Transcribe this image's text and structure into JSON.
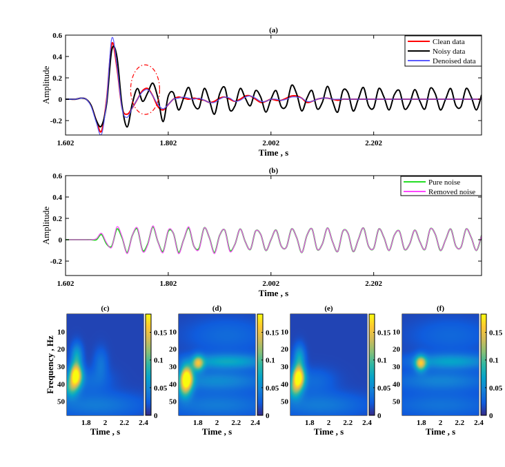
{
  "chart_data": [
    {
      "id": "a",
      "type": "line",
      "title": "(a)",
      "xlabel": "Time , s",
      "ylabel": "Amplitude",
      "xlim": [
        1.6,
        2.41
      ],
      "ylim": [
        -0.335,
        0.6
      ],
      "xticks": [
        1.6,
        1.8,
        2.0,
        2.2
      ],
      "xtick_labels": [
        "1.602",
        "1.802",
        "2.002",
        "2.202"
      ],
      "yticks": [
        0.6,
        0.4,
        0.2,
        0,
        -0.2
      ],
      "ytick_labels": [
        "0.6",
        "0.4",
        "0.2",
        "0",
        "-0.2"
      ],
      "legend": "top-right",
      "annotation": {
        "type": "dash-dot ellipse",
        "center_time": 1.755,
        "center_amplitude": 0.09,
        "color": "#ff0000"
      },
      "x_start": 1.6,
      "x_step": 0.01,
      "series": [
        {
          "name": "Clean data",
          "color": "#ff0000",
          "values": [
            0,
            0,
            0,
            0.01,
            0,
            -0.06,
            -0.2,
            -0.3,
            0,
            0.52,
            0.3,
            -0.08,
            -0.14,
            -0.08,
            0,
            0.08,
            0.1,
            0.03,
            -0.07,
            -0.1,
            -0.05,
            0,
            0.02,
            0.01,
            0,
            0.01,
            0,
            -0.01,
            -0.03,
            -0.02,
            0.01,
            0.02,
            0,
            -0.02,
            0,
            0.03,
            0.03,
            0,
            -0.03,
            -0.02,
            0,
            -0.01,
            -0.01,
            0.01,
            0.03,
            0.03,
            0.01,
            -0.03,
            -0.02,
            0,
            0.01,
            0.01,
            0,
            -0.01,
            0,
            0,
            0,
            0,
            0,
            0,
            0,
            0,
            0,
            0,
            0,
            0,
            0,
            0,
            0,
            0,
            0,
            0,
            0,
            0,
            0,
            0,
            0,
            0,
            0,
            0,
            0,
            0
          ]
        },
        {
          "name": "Noisy data",
          "color": "#000000",
          "values": [
            0,
            0,
            0,
            0.01,
            0,
            -0.06,
            -0.2,
            -0.25,
            -0.04,
            0.46,
            0.4,
            -0.06,
            -0.26,
            -0.04,
            0.1,
            -0.02,
            0.06,
            0.15,
            0.01,
            -0.21,
            0.03,
            0.06,
            -0.1,
            0.01,
            0.11,
            -0.05,
            -0.08,
            0.1,
            -0.01,
            -0.14,
            0.05,
            0.11,
            -0.1,
            -0.06,
            0.1,
            0.01,
            -0.06,
            0.08,
            0.02,
            -0.12,
            0,
            0.08,
            -0.07,
            -0.06,
            0.13,
            0.05,
            -0.11,
            0.01,
            0.08,
            -0.09,
            -0.03,
            0.12,
            -0.02,
            -0.12,
            0.08,
            0.06,
            -0.11,
            0,
            0.11,
            -0.06,
            -0.08,
            0.1,
            0.02,
            -0.1,
            0.04,
            0.08,
            -0.09,
            -0.04,
            0.09,
            -0.02,
            -0.09,
            0.1,
            0.05,
            -0.1,
            0,
            0.1,
            -0.06,
            -0.07,
            0.1,
            0.02,
            -0.1,
            0.04
          ]
        },
        {
          "name": "Denoised data",
          "color": "#5a5aff",
          "values": [
            0,
            0,
            0,
            0.01,
            0,
            -0.07,
            -0.22,
            -0.33,
            -0.01,
            0.57,
            0.32,
            -0.09,
            -0.17,
            -0.08,
            0,
            0.07,
            0.09,
            0.03,
            -0.05,
            -0.09,
            -0.05,
            0,
            0.01,
            0.02,
            0.01,
            0,
            0.01,
            -0.01,
            -0.03,
            -0.03,
            0,
            0.02,
            0.01,
            -0.02,
            -0.01,
            0.02,
            0.03,
            0.01,
            -0.02,
            -0.02,
            0,
            0,
            -0.01,
            0,
            0.02,
            0.02,
            0.01,
            -0.02,
            -0.02,
            0,
            0.01,
            0.01,
            0,
            0,
            0,
            0,
            0,
            0,
            0,
            0,
            0,
            0,
            0,
            0,
            0,
            0,
            0,
            0,
            0,
            0,
            0,
            0,
            0,
            0,
            0,
            0,
            0,
            0,
            0,
            0,
            0,
            0
          ]
        }
      ]
    },
    {
      "id": "b",
      "type": "line",
      "title": "(b)",
      "xlabel": "Time , s",
      "ylabel": "Amplitude",
      "xlim": [
        1.6,
        2.41
      ],
      "ylim": [
        -0.335,
        0.6
      ],
      "xticks": [
        1.6,
        1.8,
        2.0,
        2.2
      ],
      "xtick_labels": [
        "1.602",
        "1.802",
        "2.002",
        "2.202"
      ],
      "yticks": [
        0.6,
        0.4,
        0.2,
        0,
        -0.2
      ],
      "ytick_labels": [
        "0.6",
        "0.4",
        "0.2",
        "0",
        "-0.2"
      ],
      "legend": "top-right",
      "x_start": 1.6,
      "x_step": 0.01,
      "series": [
        {
          "name": "Pure noise",
          "color": "#22dd22",
          "values": [
            0,
            0,
            0,
            0,
            0,
            0,
            0,
            0.05,
            -0.04,
            -0.06,
            0.1,
            0.02,
            -0.12,
            0.04,
            0.1,
            -0.1,
            -0.04,
            0.12,
            -0.02,
            -0.11,
            0.08,
            0.06,
            -0.12,
            0,
            0.11,
            -0.06,
            -0.08,
            0.11,
            0.02,
            -0.12,
            0.04,
            0.09,
            -0.1,
            -0.04,
            0.1,
            -0.02,
            -0.09,
            0.08,
            0.05,
            -0.1,
            0,
            0.09,
            -0.06,
            -0.07,
            0.1,
            0.02,
            -0.12,
            0.04,
            0.1,
            -0.09,
            -0.04,
            0.11,
            -0.02,
            -0.11,
            0.08,
            0.06,
            -0.11,
            0,
            0.11,
            -0.06,
            -0.08,
            0.1,
            0.02,
            -0.1,
            0.04,
            0.08,
            -0.09,
            -0.04,
            0.09,
            -0.02,
            -0.09,
            0.1,
            0.05,
            -0.1,
            0,
            0.1,
            -0.06,
            -0.07,
            0.1,
            0.02,
            -0.1,
            0.04
          ]
        },
        {
          "name": "Removed noise",
          "color": "#ff44ff",
          "values": [
            0,
            0,
            0,
            0,
            0,
            0,
            0.01,
            0.06,
            -0.03,
            -0.07,
            0.12,
            0.03,
            -0.13,
            0.04,
            0.11,
            -0.11,
            -0.05,
            0.13,
            -0.02,
            -0.12,
            0.09,
            0.06,
            -0.13,
            0,
            0.12,
            -0.06,
            -0.09,
            0.11,
            0.02,
            -0.13,
            0.04,
            0.09,
            -0.11,
            -0.04,
            0.1,
            -0.02,
            -0.09,
            0.08,
            0.05,
            -0.1,
            0,
            0.09,
            -0.06,
            -0.07,
            0.1,
            0.02,
            -0.12,
            0.04,
            0.1,
            -0.09,
            -0.04,
            0.11,
            -0.02,
            -0.11,
            0.08,
            0.06,
            -0.11,
            0,
            0.11,
            -0.06,
            -0.08,
            0.1,
            0.02,
            -0.1,
            0.04,
            0.08,
            -0.09,
            -0.04,
            0.09,
            -0.02,
            -0.09,
            0.1,
            0.05,
            -0.1,
            0,
            0.1,
            -0.06,
            -0.07,
            0.1,
            0.02,
            -0.1,
            0.04
          ]
        }
      ]
    },
    {
      "id": "c",
      "type": "heatmap",
      "title": "(c)",
      "xlabel": "Time , s",
      "ylabel": "Frequency , Hz",
      "xlim": [
        1.6,
        2.4
      ],
      "ylim": [
        0,
        58
      ],
      "xticks": [
        1.8,
        2,
        2.2,
        2.4
      ],
      "xtick_labels": [
        "1.8",
        "2",
        "2.2",
        "2.4"
      ],
      "yticks": [
        10,
        20,
        30,
        40,
        50
      ],
      "ytick_labels": [
        "10",
        "20",
        "30",
        "40",
        "50"
      ],
      "colorbar": {
        "lim": [
          0,
          0.183
        ],
        "ticks": [
          0,
          0.05,
          0.1,
          0.15
        ],
        "tick_labels": [
          "0",
          "0.05",
          "0.1",
          "0.15"
        ],
        "colormap": "parula"
      },
      "energy_peaks": [
        {
          "time": 1.69,
          "freq": 35,
          "value": 0.18,
          "dt": 0.045,
          "df": 4.5
        },
        {
          "time": 1.7,
          "freq": 24,
          "value": 0.06,
          "dt": 0.04,
          "df": 5
        },
        {
          "time": 1.64,
          "freq": 42,
          "value": 0.07,
          "dt": 0.05,
          "df": 4
        },
        {
          "time": 1.9,
          "freq": 52,
          "value": 0.03,
          "dt": 0.35,
          "df": 5
        },
        {
          "time": 1.95,
          "freq": 28,
          "value": 0.025,
          "dt": 0.05,
          "df": 6
        },
        {
          "time": 1.85,
          "freq": 38,
          "value": 0.02,
          "dt": 0.15,
          "df": 5
        }
      ]
    },
    {
      "id": "d",
      "type": "heatmap",
      "title": "(d)",
      "xlabel": "Time , s",
      "ylabel": "",
      "xlim": [
        1.6,
        2.4
      ],
      "ylim": [
        0,
        58
      ],
      "xticks": [
        1.8,
        2,
        2.2,
        2.4
      ],
      "xtick_labels": [
        "1.8",
        "2",
        "2.2",
        "2.4"
      ],
      "yticks": [
        10,
        20,
        30,
        40,
        50
      ],
      "ytick_labels": [
        "10",
        "20",
        "30",
        "40",
        "50"
      ],
      "colorbar": {
        "lim": [
          0,
          0.183
        ],
        "ticks": [
          0,
          0.05,
          0.1,
          0.15
        ],
        "tick_labels": [
          "0",
          "0.05",
          "0.1",
          "0.15"
        ],
        "colormap": "parula"
      },
      "energy_peaks": [
        {
          "time": 1.68,
          "freq": 36,
          "value": 0.18,
          "dt": 0.045,
          "df": 4.5
        },
        {
          "time": 1.66,
          "freq": 43,
          "value": 0.07,
          "dt": 0.05,
          "df": 4
        },
        {
          "time": 1.8,
          "freq": 28,
          "value": 0.11,
          "dt": 0.04,
          "df": 3
        },
        {
          "time": 2.1,
          "freq": 27,
          "value": 0.06,
          "dt": 0.3,
          "df": 3
        },
        {
          "time": 2.0,
          "freq": 38,
          "value": 0.04,
          "dt": 0.35,
          "df": 4
        },
        {
          "time": 2.0,
          "freq": 52,
          "value": 0.03,
          "dt": 0.4,
          "df": 5
        },
        {
          "time": 2.1,
          "freq": 12,
          "value": 0.02,
          "dt": 0.3,
          "df": 7
        }
      ]
    },
    {
      "id": "e",
      "type": "heatmap",
      "title": "(e)",
      "xlabel": "Time , s",
      "ylabel": "",
      "xlim": [
        1.6,
        2.4
      ],
      "ylim": [
        0,
        58
      ],
      "xticks": [
        1.8,
        2,
        2.2,
        2.4
      ],
      "xtick_labels": [
        "1.8",
        "2",
        "2.2",
        "2.4"
      ],
      "yticks": [
        10,
        20,
        30,
        40,
        50
      ],
      "ytick_labels": [
        "10",
        "20",
        "30",
        "40",
        "50"
      ],
      "colorbar": {
        "lim": [
          0,
          0.183
        ],
        "ticks": [
          0,
          0.05,
          0.1,
          0.15
        ],
        "tick_labels": [
          "0",
          "0.05",
          "0.1",
          "0.15"
        ],
        "colormap": "parula"
      },
      "energy_peaks": [
        {
          "time": 1.68,
          "freq": 36,
          "value": 0.18,
          "dt": 0.045,
          "df": 4.5
        },
        {
          "time": 1.69,
          "freq": 25,
          "value": 0.06,
          "dt": 0.04,
          "df": 5
        },
        {
          "time": 1.64,
          "freq": 43,
          "value": 0.07,
          "dt": 0.05,
          "df": 4
        },
        {
          "time": 1.9,
          "freq": 52,
          "value": 0.03,
          "dt": 0.35,
          "df": 5
        },
        {
          "time": 1.85,
          "freq": 38,
          "value": 0.02,
          "dt": 0.15,
          "df": 5
        }
      ]
    },
    {
      "id": "f",
      "type": "heatmap",
      "title": "(f)",
      "xlabel": "Time , s",
      "ylabel": "",
      "xlim": [
        1.6,
        2.4
      ],
      "ylim": [
        0,
        58
      ],
      "xticks": [
        1.8,
        2,
        2.2,
        2.4
      ],
      "xtick_labels": [
        "1.8",
        "2",
        "2.2",
        "2.4"
      ],
      "yticks": [
        10,
        20,
        30,
        40,
        50
      ],
      "ytick_labels": [
        "10",
        "20",
        "30",
        "40",
        "50"
      ],
      "colorbar": {
        "lim": [
          0,
          0.183
        ],
        "ticks": [
          0,
          0.05,
          0.1,
          0.15
        ],
        "tick_labels": [
          "0",
          "0.05",
          "0.1",
          "0.15"
        ],
        "colormap": "parula"
      },
      "energy_peaks": [
        {
          "time": 1.79,
          "freq": 28,
          "value": 0.12,
          "dt": 0.04,
          "df": 3
        },
        {
          "time": 2.1,
          "freq": 27,
          "value": 0.055,
          "dt": 0.3,
          "df": 3
        },
        {
          "time": 2.0,
          "freq": 38,
          "value": 0.035,
          "dt": 0.35,
          "df": 4
        },
        {
          "time": 2.0,
          "freq": 52,
          "value": 0.025,
          "dt": 0.4,
          "df": 5
        },
        {
          "time": 2.1,
          "freq": 12,
          "value": 0.018,
          "dt": 0.3,
          "df": 7
        }
      ]
    }
  ]
}
